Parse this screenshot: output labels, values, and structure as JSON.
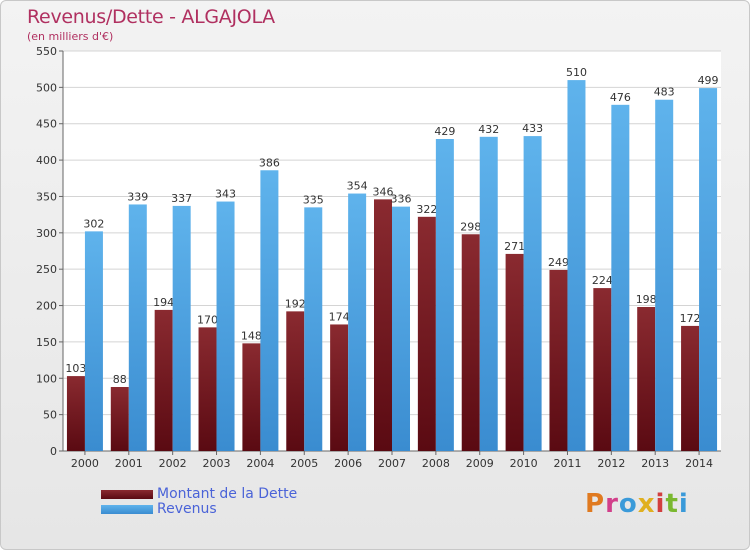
{
  "title": "Revenus/Dette - ALGAJOLA",
  "subtitle": "(en milliers d'€)",
  "logo_text": "Proxiti",
  "colors": {
    "debt": "#7a1a22",
    "revenue": "#4fa6e3",
    "title": "#b03060",
    "legend_text": "#4a63d8"
  },
  "chart_data": {
    "type": "bar",
    "title": "Revenus/Dette - ALGAJOLA",
    "subtitle": "(en milliers d'€)",
    "categories": [
      "2000",
      "2001",
      "2002",
      "2003",
      "2004",
      "2005",
      "2006",
      "2007",
      "2008",
      "2009",
      "2010",
      "2011",
      "2012",
      "2013",
      "2014"
    ],
    "series": [
      {
        "name": "Montant de la Dette",
        "values": [
          103,
          88,
          194,
          170,
          148,
          192,
          174,
          346,
          322,
          298,
          271,
          249,
          224,
          198,
          172
        ]
      },
      {
        "name": "Revenus",
        "values": [
          302,
          339,
          337,
          343,
          386,
          335,
          354,
          336,
          429,
          432,
          433,
          510,
          476,
          483,
          499
        ]
      }
    ],
    "ylim": [
      0,
      550
    ],
    "yticks": [
      0,
      50,
      100,
      150,
      200,
      250,
      300,
      350,
      400,
      450,
      500,
      550
    ],
    "grid": true,
    "legend_position": "bottom-left"
  }
}
